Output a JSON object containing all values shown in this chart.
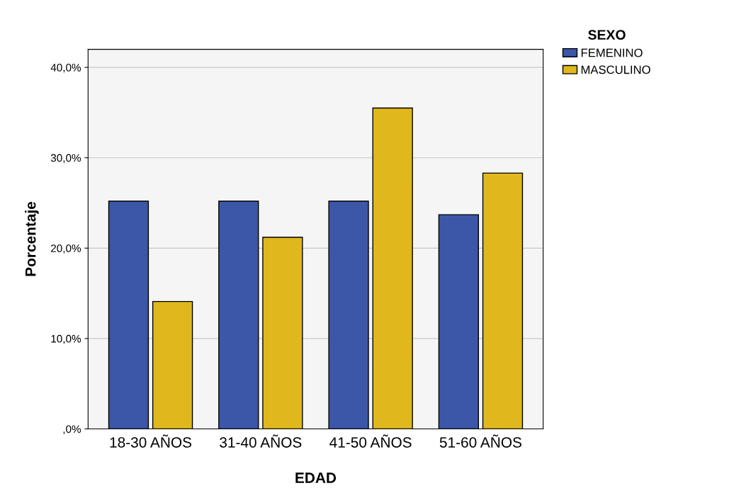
{
  "chart_data": {
    "type": "bar",
    "xlabel": "EDAD",
    "ylabel": "Porcentaje",
    "legend_title": "SEXO",
    "categories": [
      "18-30 AÑOS",
      "31-40 AÑOS",
      "41-50 AÑOS",
      "51-60 AÑOS"
    ],
    "series": [
      {
        "name": "FEMENINO",
        "color": "#3c56a8",
        "values": [
          25.2,
          25.2,
          25.2,
          23.7
        ]
      },
      {
        "name": "MASCULINO",
        "color": "#e0b81e",
        "values": [
          14.1,
          21.2,
          35.5,
          28.3
        ]
      }
    ],
    "ylim": [
      0,
      42
    ],
    "yticks": [
      {
        "value": 0,
        "label": ",0%"
      },
      {
        "value": 10,
        "label": "10,0%"
      },
      {
        "value": 20,
        "label": "20,0%"
      },
      {
        "value": 30,
        "label": "30,0%"
      },
      {
        "value": 40,
        "label": "40,0%"
      }
    ],
    "grid": "y",
    "legend": "top right"
  }
}
